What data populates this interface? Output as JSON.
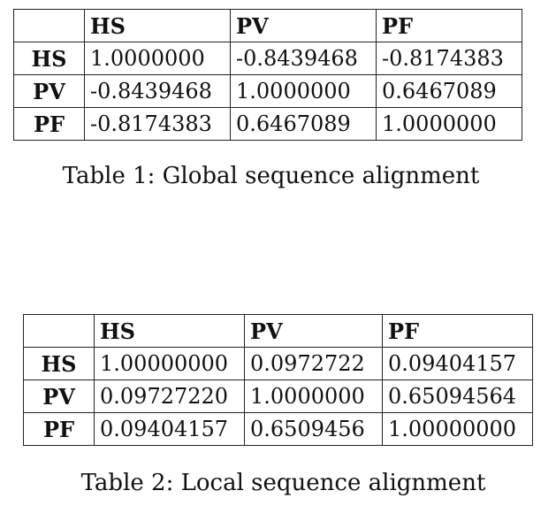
{
  "table1": {
    "headers": [
      "",
      "HS",
      "PV",
      "PF"
    ],
    "rows": [
      {
        "label": "HS",
        "cells": [
          "1.0000000",
          "-0.8439468",
          "-0.8174383"
        ]
      },
      {
        "label": "PV",
        "cells": [
          "-0.8439468",
          "1.0000000",
          "0.6467089"
        ]
      },
      {
        "label": "PF",
        "cells": [
          "-0.8174383",
          "0.6467089",
          "1.0000000"
        ]
      }
    ],
    "caption": "Table 1: Global sequence alignment"
  },
  "table2": {
    "headers": [
      "",
      "HS",
      "PV",
      "PF"
    ],
    "rows": [
      {
        "label": "HS",
        "cells": [
          "1.00000000",
          "0.0972722",
          "0.09404157"
        ]
      },
      {
        "label": "PV",
        "cells": [
          "0.09727220",
          "1.0000000",
          "0.65094564"
        ]
      },
      {
        "label": "PF",
        "cells": [
          "0.09404157",
          "0.6509456",
          "1.00000000"
        ]
      }
    ],
    "caption": "Table 2: Local sequence alignment"
  }
}
